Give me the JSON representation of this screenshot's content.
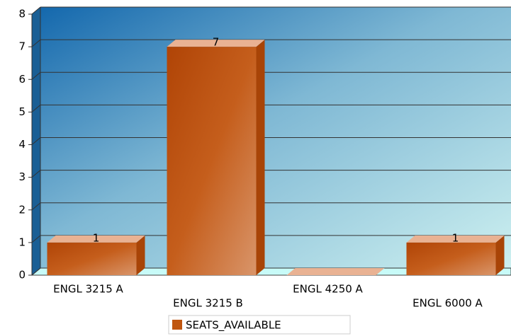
{
  "chart_data": {
    "type": "bar3d",
    "categories": [
      "ENGL 3215 A",
      "ENGL 3215 B",
      "ENGL 4250 A",
      "ENGL 6000 A"
    ],
    "series": [
      {
        "name": "SEATS_AVAILABLE",
        "color": "#c0560f",
        "values": [
          1,
          7,
          0,
          1
        ]
      }
    ],
    "ylim": [
      0,
      8
    ],
    "yticks": [
      0,
      1,
      2,
      3,
      4,
      5,
      6,
      7,
      8
    ],
    "grid": true,
    "legend": "bottom"
  }
}
